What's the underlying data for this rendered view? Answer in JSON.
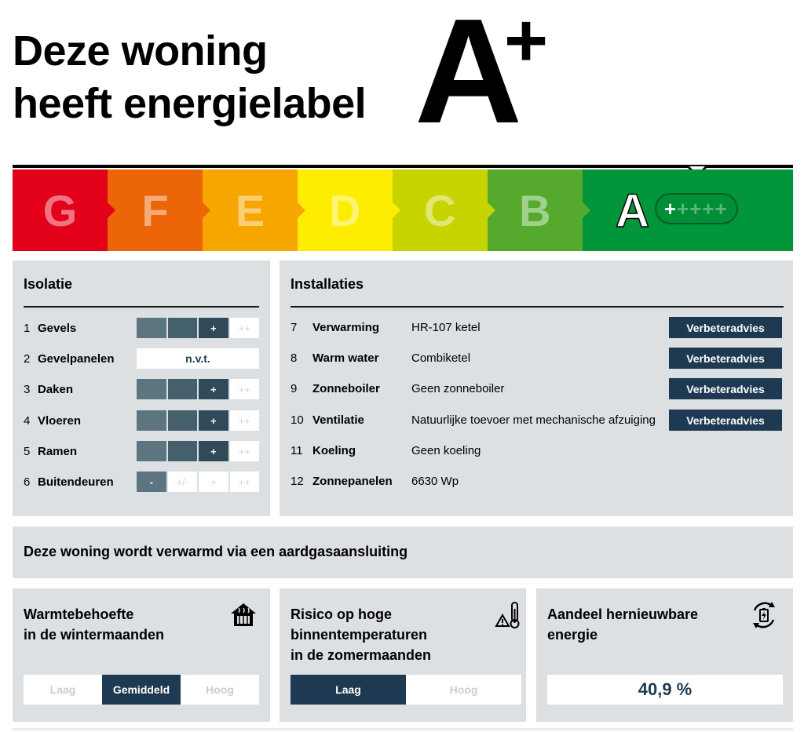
{
  "header": {
    "title_line1": "Deze woning",
    "title_line2": "heeft energielabel",
    "label_letter": "A",
    "label_plus": "+"
  },
  "scale": {
    "segments": [
      {
        "letter": "G",
        "color": "#e2001a"
      },
      {
        "letter": "F",
        "color": "#ec6608"
      },
      {
        "letter": "E",
        "color": "#f7a600"
      },
      {
        "letter": "D",
        "color": "#ffed00"
      },
      {
        "letter": "C",
        "color": "#c8d400"
      },
      {
        "letter": "B",
        "color": "#55a92c"
      },
      {
        "letter": "A",
        "color": "#009639"
      }
    ],
    "pill_active": "+",
    "pill_inactive": "++++"
  },
  "isolatie": {
    "title": "Isolatie",
    "rows": [
      {
        "num": "1",
        "name": "Gevels",
        "cells": [
          "",
          "",
          "+",
          "++"
        ],
        "level": 3
      },
      {
        "num": "2",
        "name": "Gevelpanelen",
        "na": "n.v.t."
      },
      {
        "num": "3",
        "name": "Daken",
        "cells": [
          "",
          "",
          "+",
          "++"
        ],
        "level": 3
      },
      {
        "num": "4",
        "name": "Vloeren",
        "cells": [
          "",
          "",
          "+",
          "++"
        ],
        "level": 3
      },
      {
        "num": "5",
        "name": "Ramen",
        "cells": [
          "",
          "",
          "+",
          "++"
        ],
        "level": 3
      },
      {
        "num": "6",
        "name": "Buitendeuren",
        "cells": [
          "-",
          "+/-",
          "+",
          "++"
        ],
        "level": 1
      }
    ]
  },
  "installaties": {
    "title": "Installaties",
    "advice_label": "Verbeteradvies",
    "rows": [
      {
        "num": "7",
        "name": "Verwarming",
        "value": "HR-107 ketel"
      },
      {
        "num": "8",
        "name": "Warm water",
        "value": "Combiketel"
      },
      {
        "num": "9",
        "name": "Zonneboiler",
        "value": "Geen zonneboiler"
      },
      {
        "num": "10",
        "name": "Ventilatie",
        "value": "Natuurlijke toevoer met mechanische afzuiging"
      },
      {
        "num": "11",
        "name": "Koeling",
        "value": "Geen koeling"
      },
      {
        "num": "12",
        "name": "Zonnepanelen",
        "value": "6630 Wp"
      }
    ]
  },
  "heating": {
    "text": "Deze woning wordt verwarmd via een aardgasaansluiting"
  },
  "cards": {
    "warmte": {
      "title_line1": "Warmtebehoefte",
      "title_line2": "in de wintermaanden",
      "icon": "house-heating-icon",
      "options": [
        "Laag",
        "Gemiddeld",
        "Hoog"
      ],
      "selected": "Gemiddeld"
    },
    "risico": {
      "title_line1": "Risico op hoge",
      "title_line2": "binnentemperaturen",
      "title_line3": "in de zomermaanden",
      "icon": "thermometer-warning-icon",
      "options": [
        "Laag",
        "Hoog"
      ],
      "selected": "Laag"
    },
    "aandeel": {
      "title_line1": "Aandeel hernieuwbare",
      "title_line2": "energie",
      "icon": "renewable-battery-icon",
      "value": "40,9 %"
    }
  }
}
